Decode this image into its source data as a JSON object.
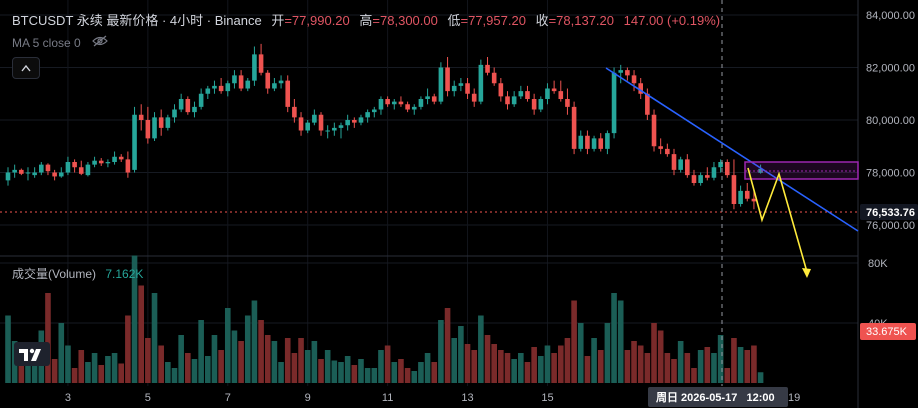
{
  "header": {
    "symbol": "BTCUSDT 永续 最新价格 · 4小时 · Binance",
    "open_label": "开",
    "open": "=77,990.20",
    "high_label": "高",
    "high": "=78,300.00",
    "low_label": "低",
    "low": "=77,957.20",
    "close_label": "收",
    "close": "=78,137.20",
    "change": "147.00 (+0.19%)"
  },
  "indicator": {
    "ma_label": "MA 5 close 0",
    "eye_icon": "eye-off-icon"
  },
  "collapse_icon": "chevron-up-icon",
  "volume_panel": {
    "title": "成交量(Volume)",
    "value": "7.162K"
  },
  "price_axis": {
    "ticks": [
      "84,000.00",
      "82,000.00",
      "80,000.00",
      "78,000.00",
      "76,000.00"
    ],
    "current_price": "76,533.76"
  },
  "volume_axis": {
    "ticks": [
      "80K",
      "40K"
    ],
    "current_volume": "33.675K"
  },
  "time_axis": {
    "labels": [
      "3",
      "5",
      "7",
      "9",
      "11",
      "13",
      "15"
    ],
    "crosshair_label": "周日 2026-05-17   12:00",
    "partial_label": "19"
  },
  "colors": {
    "up": "#26a69a",
    "down": "#ef5350",
    "bg": "#000000",
    "trend": "#2962ff",
    "zone": "#9c27b0",
    "projection": "#ffeb3b"
  },
  "chart_data": {
    "type": "candlestick",
    "interval": "4h",
    "price_range": [
      75500,
      84500
    ],
    "volume_range": [
      0,
      100000
    ],
    "candles": [
      [
        77700,
        78200,
        77500,
        78000,
        45000
      ],
      [
        78000,
        78300,
        77800,
        78100,
        28000
      ],
      [
        78100,
        78150,
        77900,
        77950,
        15000
      ],
      [
        78000,
        78200,
        77700,
        78000,
        20000
      ],
      [
        77900,
        78200,
        77800,
        78000,
        12000
      ],
      [
        78000,
        78400,
        77900,
        78300,
        35000
      ],
      [
        78300,
        78350,
        77900,
        78050,
        60000
      ],
      [
        78000,
        78100,
        77700,
        77850,
        16000
      ],
      [
        77850,
        78200,
        77800,
        78000,
        40000
      ],
      [
        78000,
        78600,
        77900,
        78400,
        25000
      ],
      [
        78400,
        78500,
        78000,
        78200,
        10000
      ],
      [
        78200,
        78450,
        77900,
        77950,
        22000
      ],
      [
        77900,
        78400,
        77850,
        78300,
        14000
      ],
      [
        78300,
        78600,
        78200,
        78450,
        20000
      ],
      [
        78450,
        78550,
        78250,
        78350,
        12000
      ],
      [
        78350,
        78500,
        78200,
        78400,
        18000
      ],
      [
        78400,
        78800,
        78300,
        78600,
        20000
      ],
      [
        78600,
        78700,
        78400,
        78500,
        13000
      ],
      [
        78500,
        78800,
        77800,
        78000,
        45000
      ],
      [
        78100,
        80500,
        78000,
        80200,
        85000
      ],
      [
        80200,
        80600,
        79600,
        80000,
        65000
      ],
      [
        80000,
        80500,
        79100,
        79300,
        30000
      ],
      [
        79300,
        80300,
        79200,
        80100,
        60000
      ],
      [
        80100,
        80400,
        79400,
        79700,
        25000
      ],
      [
        79700,
        80200,
        79600,
        80100,
        14000
      ],
      [
        80100,
        80600,
        79900,
        80400,
        10000
      ],
      [
        80400,
        81000,
        80300,
        80800,
        32000
      ],
      [
        80800,
        80900,
        80200,
        80300,
        20000
      ],
      [
        80300,
        80700,
        80100,
        80500,
        16000
      ],
      [
        80500,
        81200,
        80400,
        81000,
        42000
      ],
      [
        81000,
        81300,
        80800,
        81200,
        18000
      ],
      [
        81200,
        81500,
        81000,
        81300,
        32000
      ],
      [
        81300,
        81600,
        81000,
        81100,
        22000
      ],
      [
        81100,
        81500,
        80900,
        81400,
        50000
      ],
      [
        81400,
        81900,
        81200,
        81700,
        35000
      ],
      [
        81700,
        81900,
        81100,
        81200,
        28000
      ],
      [
        81200,
        81600,
        81100,
        81500,
        45000
      ],
      [
        81500,
        82800,
        81300,
        82500,
        55000
      ],
      [
        82500,
        82900,
        81700,
        81800,
        42000
      ],
      [
        81800,
        81900,
        81000,
        81200,
        32000
      ],
      [
        81200,
        81600,
        81100,
        81400,
        28000
      ],
      [
        81400,
        81700,
        81200,
        81500,
        14000
      ],
      [
        81500,
        81700,
        80300,
        80500,
        30000
      ],
      [
        80500,
        80800,
        79900,
        80100,
        20000
      ],
      [
        80100,
        80300,
        79400,
        79600,
        30000
      ],
      [
        79600,
        80000,
        79500,
        79900,
        22000
      ],
      [
        79900,
        80400,
        79800,
        80200,
        28000
      ],
      [
        80200,
        80300,
        79400,
        79600,
        16000
      ],
      [
        79600,
        79800,
        79300,
        79600,
        22000
      ],
      [
        79600,
        79900,
        79400,
        79700,
        15000
      ],
      [
        79700,
        79900,
        79300,
        79800,
        14000
      ],
      [
        79800,
        80200,
        79600,
        80000,
        18000
      ],
      [
        80000,
        80100,
        79700,
        79900,
        12000
      ],
      [
        79900,
        80200,
        79800,
        80100,
        16000
      ],
      [
        80100,
        80400,
        79900,
        80300,
        10000
      ],
      [
        80300,
        80500,
        80100,
        80400,
        10000
      ],
      [
        80400,
        80900,
        80200,
        80800,
        22000
      ],
      [
        80800,
        80900,
        80500,
        80600,
        25000
      ],
      [
        80600,
        80800,
        80400,
        80700,
        14000
      ],
      [
        80700,
        80900,
        80500,
        80600,
        16000
      ],
      [
        80600,
        80700,
        80300,
        80400,
        10000
      ],
      [
        80400,
        80600,
        80200,
        80500,
        8000
      ],
      [
        80500,
        80900,
        80400,
        80800,
        14000
      ],
      [
        80800,
        81200,
        80600,
        80900,
        20000
      ],
      [
        80900,
        81000,
        80600,
        80700,
        14000
      ],
      [
        80700,
        82200,
        80600,
        82000,
        42000
      ],
      [
        82000,
        82400,
        80900,
        81100,
        50000
      ],
      [
        81100,
        81500,
        80900,
        81300,
        30000
      ],
      [
        81300,
        81600,
        81100,
        81400,
        38000
      ],
      [
        81400,
        81600,
        80800,
        81000,
        26000
      ],
      [
        81000,
        81200,
        80500,
        80700,
        22000
      ],
      [
        80700,
        82300,
        80600,
        82100,
        45000
      ],
      [
        82100,
        82400,
        81700,
        81800,
        32000
      ],
      [
        81800,
        82000,
        81300,
        81400,
        26000
      ],
      [
        81400,
        81600,
        80700,
        80900,
        22000
      ],
      [
        80900,
        81100,
        80400,
        80600,
        20000
      ],
      [
        80600,
        81100,
        80500,
        80900,
        16000
      ],
      [
        80900,
        81300,
        80800,
        81100,
        20000
      ],
      [
        81100,
        81300,
        80700,
        80800,
        14000
      ],
      [
        80800,
        81000,
        80200,
        80400,
        24000
      ],
      [
        80400,
        80900,
        80300,
        80800,
        18000
      ],
      [
        80800,
        81400,
        80600,
        81200,
        25000
      ],
      [
        81200,
        81500,
        81000,
        81100,
        20000
      ],
      [
        81100,
        81500,
        80700,
        80800,
        25000
      ],
      [
        80800,
        81200,
        80200,
        80500,
        30000
      ],
      [
        80500,
        80700,
        78700,
        78900,
        55000
      ],
      [
        78900,
        79600,
        78800,
        79400,
        40000
      ],
      [
        79400,
        79600,
        78700,
        78900,
        18000
      ],
      [
        78900,
        79400,
        78800,
        79300,
        30000
      ],
      [
        79300,
        79500,
        78800,
        78900,
        22000
      ],
      [
        78900,
        79600,
        78700,
        79500,
        40000
      ],
      [
        79500,
        82000,
        79300,
        81800,
        60000
      ],
      [
        81800,
        82100,
        81400,
        81900,
        55000
      ],
      [
        81900,
        82000,
        81500,
        81700,
        22000
      ],
      [
        81700,
        81900,
        81100,
        81400,
        28000
      ],
      [
        81400,
        81600,
        80800,
        81000,
        25000
      ],
      [
        81000,
        81200,
        80000,
        80200,
        20000
      ],
      [
        80200,
        80400,
        78800,
        79000,
        40000
      ],
      [
        79000,
        79300,
        78700,
        78900,
        35000
      ],
      [
        78900,
        79100,
        78600,
        78700,
        20000
      ],
      [
        78700,
        78900,
        77900,
        78100,
        16000
      ],
      [
        78100,
        78600,
        78000,
        78500,
        28000
      ],
      [
        78500,
        78700,
        77800,
        77900,
        20000
      ],
      [
        77900,
        78100,
        77500,
        77600,
        10000
      ],
      [
        77600,
        78000,
        77500,
        77900,
        22000
      ],
      [
        77900,
        78200,
        77700,
        77800,
        24000
      ],
      [
        77800,
        78400,
        77700,
        78200,
        20000
      ],
      [
        78200,
        78500,
        78000,
        78400,
        32000
      ],
      [
        78400,
        78500,
        77800,
        77900,
        10000
      ],
      [
        77900,
        78500,
        76600,
        76800,
        30000
      ],
      [
        76800,
        77500,
        76700,
        77300,
        24000
      ],
      [
        77300,
        77600,
        76900,
        77000,
        22000
      ],
      [
        77000,
        77300,
        76600,
        76900,
        25000
      ],
      [
        77990,
        78300,
        77957,
        78137,
        7162
      ]
    ]
  }
}
